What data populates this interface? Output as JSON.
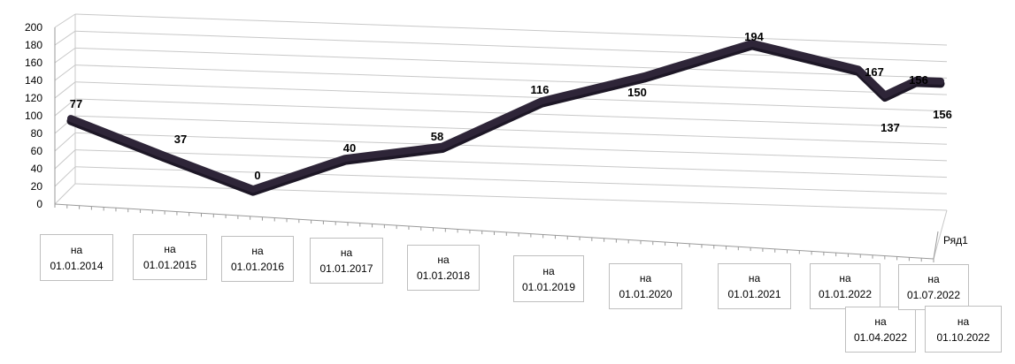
{
  "chart_data": {
    "type": "line",
    "style": "3d",
    "categories": [
      [
        "на",
        "01.01.2014"
      ],
      [
        "на",
        "01.01.2015"
      ],
      [
        "на",
        "01.01.2016"
      ],
      [
        "на",
        "01.01.2017"
      ],
      [
        "на",
        "01.01.2018"
      ],
      [
        "на",
        "01.01.2019"
      ],
      [
        "на",
        "01.01.2020"
      ],
      [
        "на",
        "01.01.2021"
      ],
      [
        "на",
        "01.01.2022"
      ],
      [
        "на",
        "01.04.2022"
      ],
      [
        "на",
        "01.07.2022"
      ],
      [
        "на",
        "01.10.2022"
      ]
    ],
    "series": [
      {
        "name": "Ряд1",
        "values": [
          77,
          37,
          0,
          40,
          58,
          116,
          150,
          194,
          167,
          137,
          156,
          156
        ],
        "color": "#2e2538"
      }
    ],
    "ylim": [
      0,
      200
    ],
    "yticks": [
      0,
      20,
      40,
      60,
      80,
      100,
      120,
      140,
      160,
      180,
      200
    ],
    "grid": true,
    "title": "",
    "xlabel": "",
    "ylabel": ""
  }
}
